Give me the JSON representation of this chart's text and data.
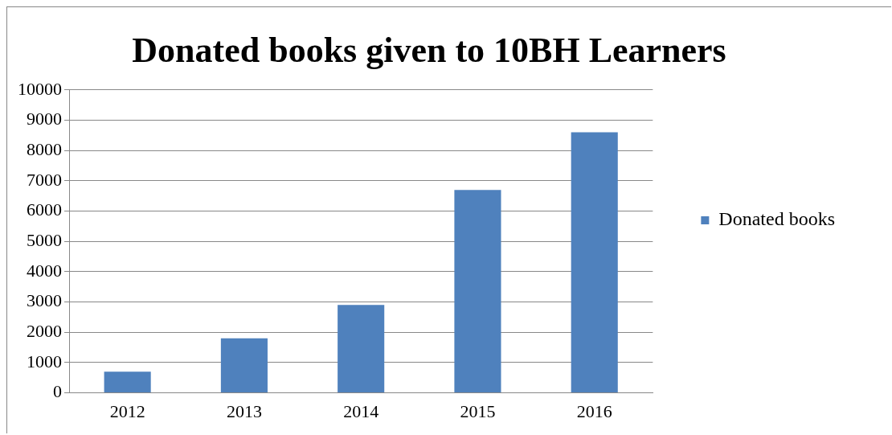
{
  "chart_data": {
    "type": "bar",
    "title": "Donated books given to 10BH Learners",
    "categories": [
      "2012",
      "2013",
      "2014",
      "2015",
      "2016"
    ],
    "series": [
      {
        "name": "Donated books",
        "color": "#4f81bd",
        "values": [
          700,
          1800,
          2900,
          6700,
          8600
        ]
      }
    ],
    "ylim": [
      0,
      10000
    ],
    "yticks": [
      0,
      1000,
      2000,
      3000,
      4000,
      5000,
      6000,
      7000,
      8000,
      9000,
      10000
    ],
    "grid": "y",
    "legend": "right"
  }
}
